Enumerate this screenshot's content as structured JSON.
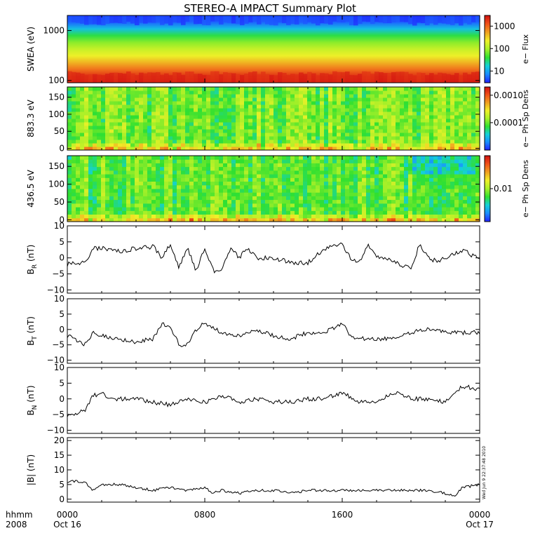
{
  "title": "STEREO-A IMPACT Summary Plot",
  "timestamp": "Wed Jun  9 22:37:48 2010",
  "colors": {
    "spectrum": [
      "#2020ff",
      "#1a8cff",
      "#14d0d8",
      "#30e030",
      "#a8f028",
      "#f0f028",
      "#f0a020",
      "#f05018",
      "#d01010"
    ],
    "trace": "#000000"
  },
  "x_axis": {
    "row_label_1": "hhmm",
    "row_label_2": "2008",
    "ticks": [
      {
        "time": "0000",
        "date": "Oct 16",
        "hours": 0
      },
      {
        "time": "0800",
        "date": "",
        "hours": 8
      },
      {
        "time": "1600",
        "date": "",
        "hours": 16
      },
      {
        "time": "0000",
        "date": "Oct 17",
        "hours": 24
      }
    ],
    "range_hours": [
      0,
      24
    ]
  },
  "chart_data": [
    {
      "type": "heatmap",
      "name": "swea",
      "ylabel": "SWEA (eV)",
      "yscale": "log",
      "ylim": [
        90,
        2000
      ],
      "yticks": [
        100,
        1000
      ],
      "yticklabels": [
        "100",
        "1000"
      ],
      "colorbar": {
        "label": "e− Flux",
        "scale": "log",
        "range": [
          3,
          3000
        ],
        "ticks": [
          10,
          100,
          1000
        ],
        "ticklabels": [
          "10",
          "100",
          "1000"
        ]
      },
      "profile_energy_fraction": [
        0.0,
        0.1,
        0.2,
        0.3,
        0.4,
        0.5,
        0.6,
        0.7,
        0.8,
        0.9,
        1.0
      ],
      "profile_color_level": [
        0.98,
        0.93,
        0.82,
        0.72,
        0.62,
        0.55,
        0.47,
        0.36,
        0.22,
        0.08,
        0.02
      ]
    },
    {
      "type": "heatmap",
      "name": "pad-883",
      "ylabel": "883.3 eV",
      "ylim": [
        -5,
        180
      ],
      "yticks": [
        0,
        50,
        100,
        150
      ],
      "yticklabels": [
        "0",
        "50",
        "100",
        "150"
      ],
      "colorbar": {
        "label": "e− Ph Sp Dens",
        "scale": "log",
        "range": [
          1e-05,
          0.002
        ],
        "ticks": [
          0.0001,
          0.001
        ],
        "ticklabels": [
          "0.0001",
          "0.0010"
        ]
      },
      "base_level": 0.45,
      "low_angle_level": 0.7
    },
    {
      "type": "heatmap",
      "name": "pad-436",
      "ylabel": "436.5 eV",
      "ylim": [
        -5,
        180
      ],
      "yticks": [
        0,
        50,
        100,
        150
      ],
      "yticklabels": [
        "0",
        "50",
        "100",
        "150"
      ],
      "colorbar": {
        "label": "e− Ph Sp Dens",
        "scale": "log",
        "range": [
          0.002,
          0.05
        ],
        "ticks": [
          0.01
        ],
        "ticklabels": [
          "0.01"
        ]
      },
      "base_level": 0.42,
      "low_angle_level": 0.72
    },
    {
      "type": "line",
      "name": "br",
      "ylabel_main": "B",
      "ylabel_sub": "R",
      "ylabel_unit": " (nT)",
      "ylim": [
        -11,
        10
      ],
      "yticks": [
        -10,
        -5,
        0,
        5,
        10
      ],
      "yticklabels": [
        "−10",
        "−5",
        "0",
        "5",
        "10"
      ],
      "x_hours": [
        0,
        1,
        1.5,
        2,
        2.5,
        3,
        4,
        5,
        5.5,
        6,
        6.5,
        7,
        7.5,
        8,
        8.5,
        9,
        9.5,
        10,
        10.5,
        11,
        12,
        13,
        14,
        15,
        16,
        16.5,
        17,
        17.5,
        18,
        18.5,
        19,
        20,
        20.5,
        21,
        21.5,
        22,
        22.5,
        23,
        24
      ],
      "y": [
        -2,
        -1.5,
        3,
        3,
        2.5,
        2,
        3,
        3.5,
        0,
        4.5,
        -3,
        3,
        -4,
        3,
        -4,
        -4,
        3,
        0,
        3,
        0,
        0,
        -1.5,
        -1.5,
        3,
        4.5,
        -0.5,
        -1.5,
        4,
        0,
        0,
        -1.5,
        -3,
        4,
        0,
        -1,
        0,
        1,
        2.5,
        -0.5
      ]
    },
    {
      "type": "line",
      "name": "bt",
      "ylabel_main": "B",
      "ylabel_sub": "T",
      "ylabel_unit": " (nT)",
      "ylim": [
        -11,
        10
      ],
      "yticks": [
        -10,
        -5,
        0,
        5,
        10
      ],
      "yticklabels": [
        "−10",
        "−5",
        "0",
        "5",
        "10"
      ],
      "x_hours": [
        0,
        1,
        1.5,
        2,
        3,
        4,
        5,
        5.5,
        6,
        6.5,
        7,
        7.5,
        8,
        9,
        10,
        11,
        12,
        13,
        14,
        15,
        16,
        16.5,
        17,
        18,
        19,
        20,
        21,
        22,
        23,
        24
      ],
      "y": [
        -2,
        -5,
        -1,
        -2,
        -3,
        -4,
        -3,
        2,
        1,
        -5,
        -5,
        0,
        2,
        -1,
        -2,
        0,
        -2,
        -3,
        -1,
        -1,
        2,
        -2,
        -3,
        -3,
        -3,
        -1,
        0,
        -1,
        -1,
        -1
      ]
    },
    {
      "type": "line",
      "name": "bn",
      "ylabel_main": "B",
      "ylabel_sub": "N",
      "ylabel_unit": " (nT)",
      "ylim": [
        -11,
        10
      ],
      "yticks": [
        -10,
        -5,
        0,
        5,
        10
      ],
      "yticklabels": [
        "−10",
        "−5",
        "0",
        "5",
        "10"
      ],
      "x_hours": [
        0,
        1,
        1.5,
        2,
        2.5,
        3,
        4,
        5,
        6,
        7,
        8,
        9,
        10,
        11,
        12,
        13,
        14,
        15,
        16,
        17,
        18,
        19,
        20,
        21,
        22,
        23,
        24
      ],
      "y": [
        -5,
        -4,
        1,
        2,
        0,
        0,
        0,
        -1,
        -2,
        0,
        -1,
        1,
        -1,
        0,
        -1,
        -1,
        0,
        0,
        2,
        -1,
        -1,
        2,
        0,
        0,
        -1,
        4,
        3
      ]
    },
    {
      "type": "line",
      "name": "b-mag",
      "ylabel_main": "|B|",
      "ylabel_sub": "",
      "ylabel_unit": " (nT)",
      "ylim": [
        -1,
        21
      ],
      "yticks": [
        0,
        5,
        10,
        15,
        20
      ],
      "yticklabels": [
        "0",
        "5",
        "10",
        "15",
        "20"
      ],
      "x_hours": [
        0,
        1,
        1.5,
        2,
        3,
        4,
        5,
        6,
        7,
        8,
        8.5,
        9,
        10,
        11,
        12,
        13,
        14,
        15,
        16,
        17,
        18,
        19,
        20,
        21,
        22,
        22.5,
        23,
        24
      ],
      "y": [
        6,
        6,
        3,
        5,
        5,
        4,
        3,
        4,
        3,
        4,
        2,
        3,
        2,
        3,
        3,
        2,
        3,
        3,
        3,
        3,
        3,
        3,
        3,
        3,
        2,
        1,
        4,
        5
      ]
    }
  ]
}
